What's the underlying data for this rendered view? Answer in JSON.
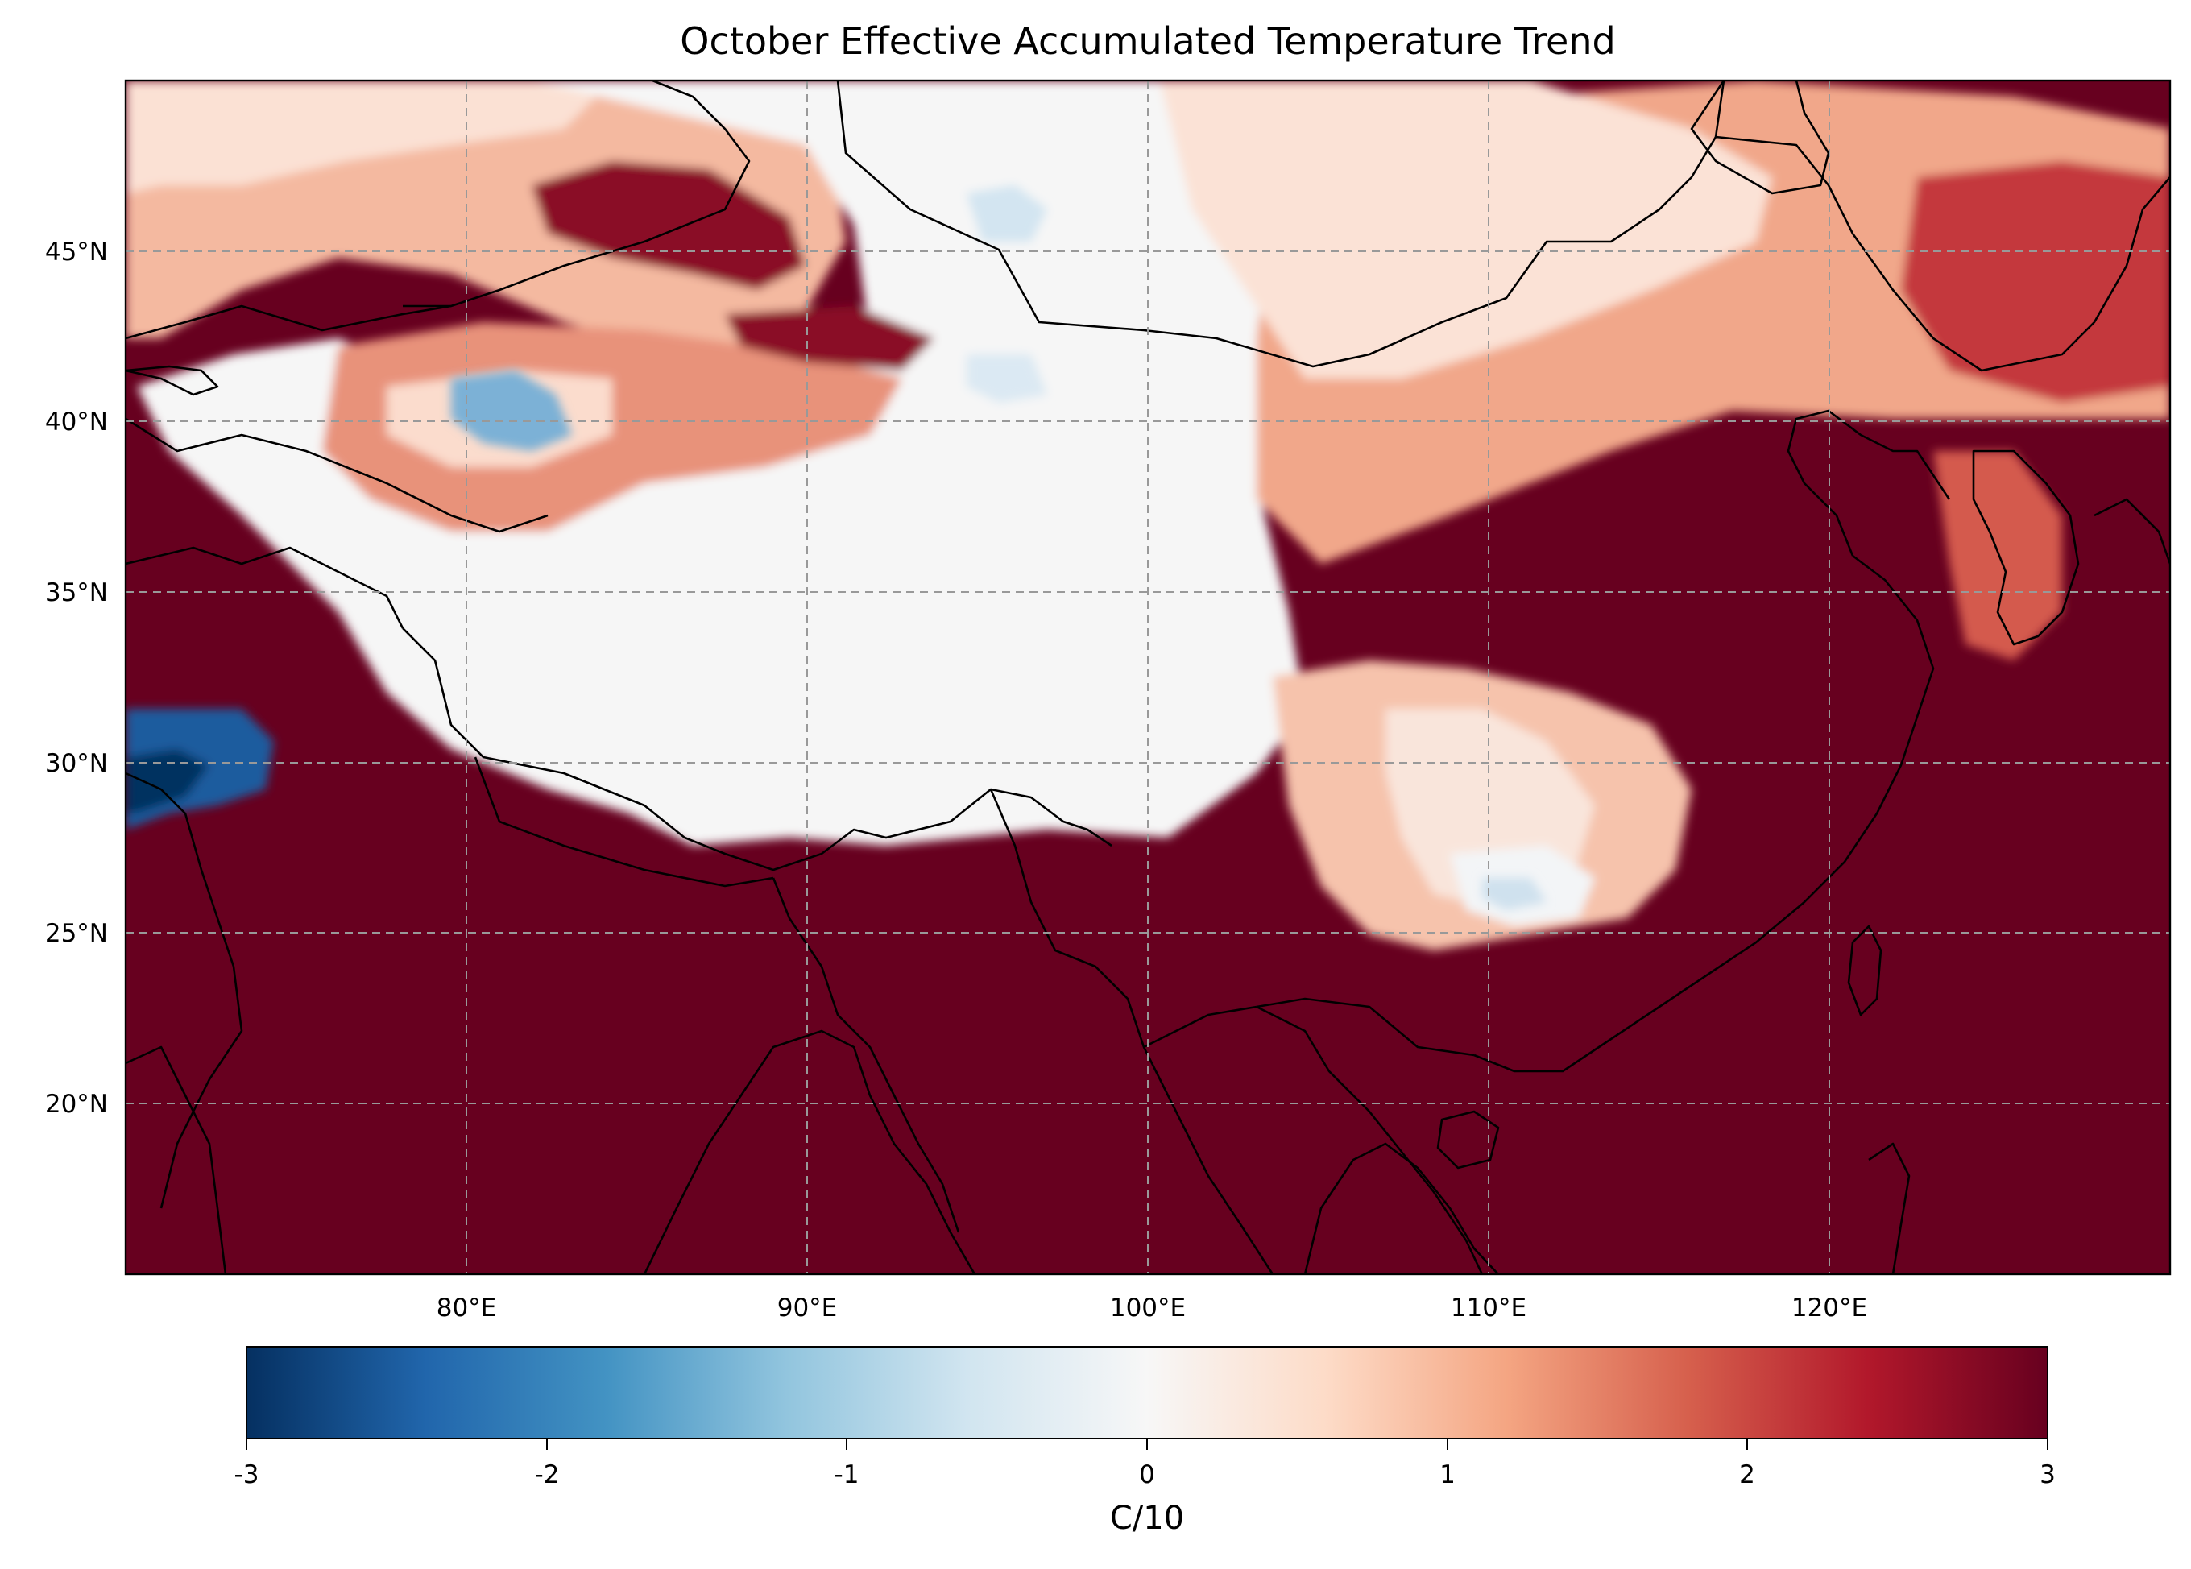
{
  "title": "October Effective Accumulated Temperature Trend",
  "map": {
    "type": "heatmap",
    "projection": "PlateCarree",
    "extent": {
      "lon": [
        70,
        130
      ],
      "lat": [
        15,
        50
      ]
    },
    "lon_ticks": [
      {
        "value": 80,
        "label": "80°E"
      },
      {
        "value": 90,
        "label": "90°E"
      },
      {
        "value": 100,
        "label": "100°E"
      },
      {
        "value": 110,
        "label": "110°E"
      },
      {
        "value": 120,
        "label": "120°E"
      }
    ],
    "lat_ticks": [
      {
        "value": 20,
        "label": "20°N"
      },
      {
        "value": 25,
        "label": "25°N"
      },
      {
        "value": 30,
        "label": "30°N"
      },
      {
        "value": 35,
        "label": "35°N"
      },
      {
        "value": 40,
        "label": "40°N"
      },
      {
        "value": 45,
        "label": "45°N"
      }
    ],
    "grid": true,
    "grid_style": "dashed",
    "colormap": "RdBu_r",
    "colors": {
      "low": "#053061",
      "mid": "#f7f7f7",
      "high": "#67001f"
    },
    "features": [
      "coastlines",
      "country borders"
    ],
    "regions_described": {
      "south_of_himalaya_and_east_china": 3,
      "tibetan_plateau_and_gobi": 0,
      "northeast_china_and_korea": 1.5,
      "tarim_basin": 1.2,
      "north_pakistan_afghanistan_border": -3
    }
  },
  "colorbar": {
    "range": [
      -3,
      3
    ],
    "ticks": [
      {
        "value": -3,
        "label": "-3"
      },
      {
        "value": -2,
        "label": "-2"
      },
      {
        "value": -1,
        "label": "-1"
      },
      {
        "value": 0,
        "label": "0"
      },
      {
        "value": 1,
        "label": "1"
      },
      {
        "value": 2,
        "label": "2"
      },
      {
        "value": 3,
        "label": "3"
      }
    ],
    "label": "C/10",
    "orientation": "horizontal"
  }
}
